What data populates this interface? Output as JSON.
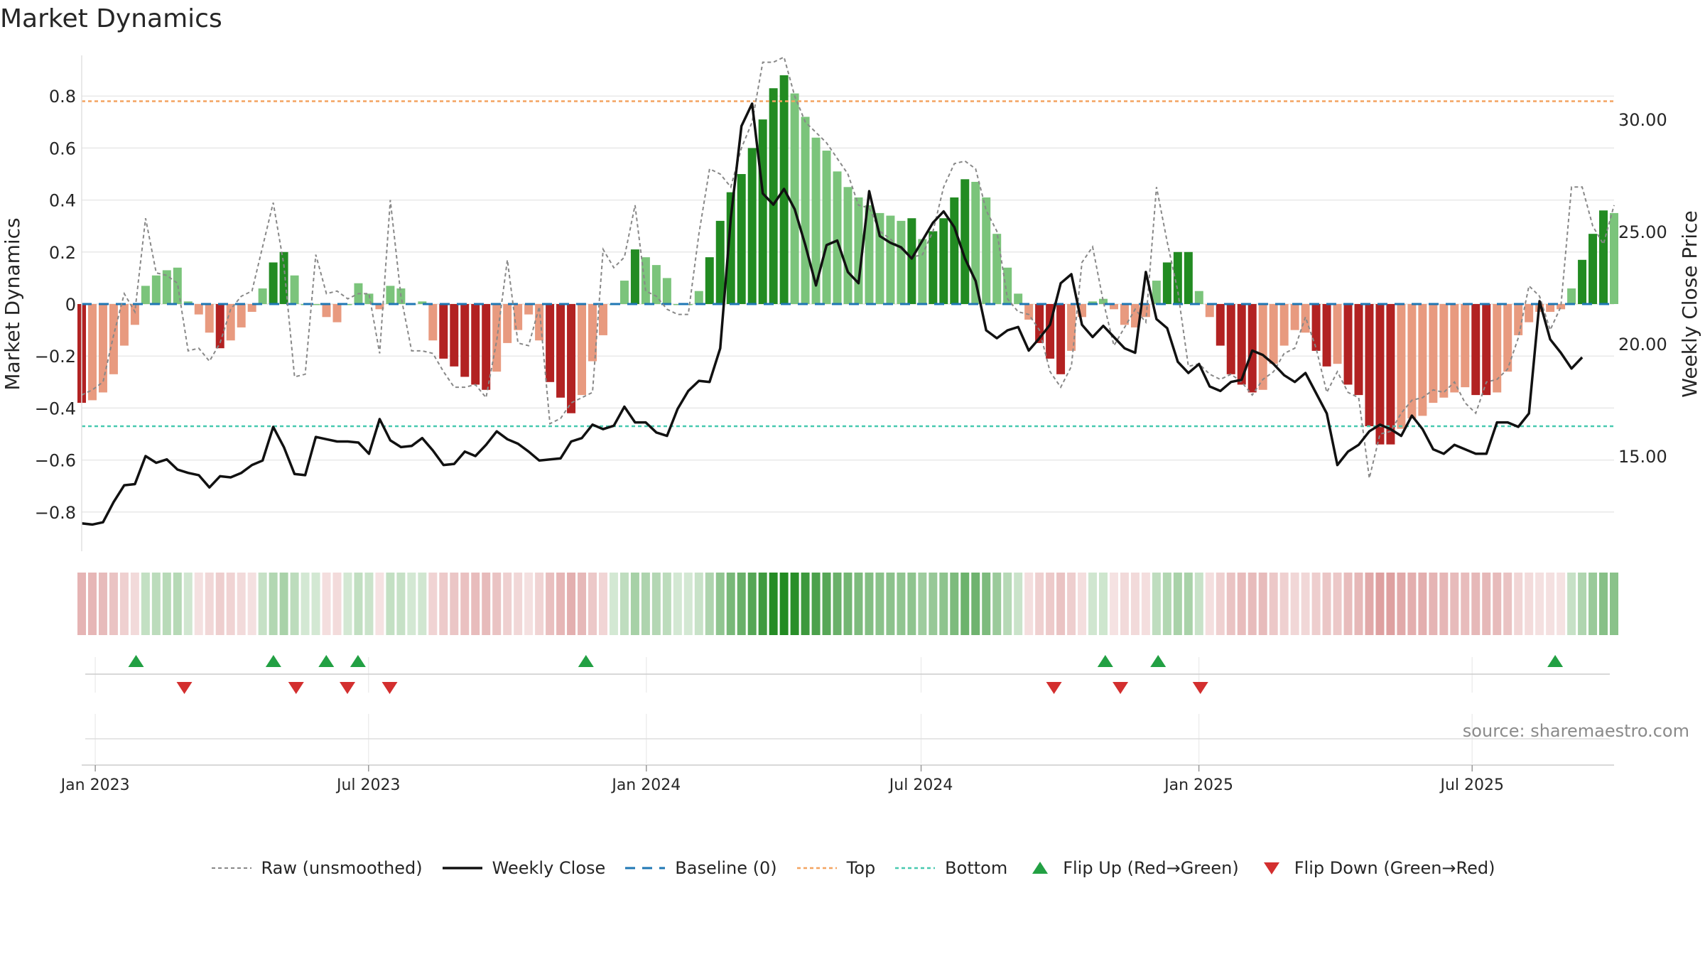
{
  "title": "Market Dynamics",
  "source_text": "source: sharemaestro.com",
  "colors": {
    "green_strong": "#228B22",
    "green_light": "#7BC47B",
    "red_strong": "#B22222",
    "red_light": "#E89A7F",
    "raw_line": "#888888",
    "close_line": "#111111",
    "baseline": "#1f77b4",
    "top": "#F4A460",
    "bottom": "#48C9B0",
    "flip_up": "#22A043",
    "flip_down": "#D32F2F"
  },
  "legend": [
    {
      "key": "raw",
      "label": "Raw (unsmoothed)"
    },
    {
      "key": "close",
      "label": "Weekly Close"
    },
    {
      "key": "baseline",
      "label": "Baseline (0)"
    },
    {
      "key": "top",
      "label": "Top"
    },
    {
      "key": "bottom",
      "label": "Bottom"
    },
    {
      "key": "flip_up",
      "label": "Flip Up (Red→Green)"
    },
    {
      "key": "flip_down",
      "label": "Flip Down (Green→Red)"
    }
  ],
  "chart_data": {
    "type": "bar",
    "ylabel": "Market Dynamics",
    "y2label": "Weekly Close Price",
    "ylim": [
      -0.95,
      0.95
    ],
    "y2lim": [
      10.2,
      33.3
    ],
    "yticks": [
      0.8,
      0.6,
      0.4,
      0.2,
      0,
      -0.2,
      -0.4,
      -0.6,
      -0.8
    ],
    "y2ticks": [
      30.0,
      25.0,
      20.0,
      15.0
    ],
    "y2tick_labels": [
      "30.00",
      "25.00",
      "20.00",
      "15.00"
    ],
    "top_level": 0.78,
    "bottom_level": -0.47,
    "baseline": 0,
    "start_date": "2022-12-23",
    "end_date": "2025-10-03",
    "xticks": [
      {
        "label": "Jan 2023",
        "date": "2023-01-01"
      },
      {
        "label": "Jul 2023",
        "date": "2023-07-01"
      },
      {
        "label": "Jan 2024",
        "date": "2024-01-01"
      },
      {
        "label": "Jul 2024",
        "date": "2024-07-01"
      },
      {
        "label": "Jan 2025",
        "date": "2025-01-01"
      },
      {
        "label": "Jul 2025",
        "date": "2025-07-01"
      }
    ],
    "series": [
      {
        "name": "Market Dynamics (smoothed)",
        "values": [
          -0.38,
          -0.37,
          -0.34,
          -0.27,
          -0.16,
          -0.08,
          0.07,
          0.11,
          0.13,
          0.14,
          0.01,
          -0.04,
          -0.11,
          -0.17,
          -0.14,
          -0.09,
          -0.03,
          0.06,
          0.16,
          0.2,
          0.11,
          0,
          0,
          -0.05,
          -0.07,
          0,
          0.08,
          0.04,
          -0.02,
          0.07,
          0.06,
          0,
          0.01,
          -0.14,
          -0.21,
          -0.24,
          -0.28,
          -0.31,
          -0.33,
          -0.26,
          -0.15,
          -0.1,
          -0.04,
          -0.14,
          -0.3,
          -0.36,
          -0.42,
          -0.35,
          -0.22,
          -0.12,
          0,
          0.09,
          0.21,
          0.18,
          0.15,
          0.1,
          0,
          0,
          0.05,
          0.18,
          0.32,
          0.43,
          0.5,
          0.6,
          0.71,
          0.83,
          0.88,
          0.81,
          0.72,
          0.64,
          0.59,
          0.51,
          0.45,
          0.41,
          0.38,
          0.35,
          0.34,
          0.32,
          0.33,
          0.25,
          0.28,
          0.33,
          0.41,
          0.48,
          0.47,
          0.41,
          0.27,
          0.14,
          0.04,
          -0.06,
          -0.15,
          -0.21,
          -0.27,
          -0.18,
          -0.05,
          0.01,
          0.02,
          -0.02,
          -0.08,
          -0.09,
          -0.05,
          0.09,
          0.16,
          0.2,
          0.2,
          0.05,
          -0.05,
          -0.16,
          -0.27,
          -0.31,
          -0.34,
          -0.33,
          -0.23,
          -0.16,
          -0.1,
          -0.11,
          -0.18,
          -0.24,
          -0.23,
          -0.31,
          -0.35,
          -0.47,
          -0.54,
          -0.54,
          -0.48,
          -0.44,
          -0.43,
          -0.38,
          -0.36,
          -0.34,
          -0.32,
          -0.35,
          -0.35,
          -0.34,
          -0.26,
          -0.12,
          -0.07,
          -0.03,
          -0.03,
          -0.02,
          0.06,
          0.17,
          0.27,
          0.36,
          0.35
        ]
      },
      {
        "name": "Raw (unsmoothed)",
        "values": [
          -0.35,
          -0.33,
          -0.3,
          -0.12,
          0.04,
          -0.03,
          0.33,
          0.12,
          0.11,
          0.08,
          -0.18,
          -0.17,
          -0.22,
          -0.15,
          -0.02,
          0.03,
          0.05,
          0.22,
          0.39,
          0.15,
          -0.28,
          -0.27,
          0.19,
          0.04,
          0.05,
          0.02,
          0.04,
          0.04,
          -0.19,
          0.4,
          0.03,
          -0.18,
          -0.18,
          -0.19,
          -0.26,
          -0.32,
          -0.32,
          -0.31,
          -0.36,
          -0.14,
          0.17,
          -0.15,
          -0.16,
          -0.01,
          -0.46,
          -0.44,
          -0.38,
          -0.36,
          -0.34,
          0.21,
          0.14,
          0.18,
          0.38,
          0.05,
          0.03,
          -0.02,
          -0.04,
          -0.04,
          0.27,
          0.52,
          0.5,
          0.45,
          0.6,
          0.7,
          0.93,
          0.93,
          0.95,
          0.8,
          0.7,
          0.66,
          0.62,
          0.56,
          0.5,
          0.38,
          0.37,
          0.28,
          0.25,
          0.21,
          0.18,
          0.19,
          0.28,
          0.45,
          0.54,
          0.55,
          0.52,
          0.36,
          0.28,
          0.02,
          -0.03,
          -0.04,
          -0.1,
          -0.26,
          -0.32,
          -0.24,
          0.16,
          0.22,
          0.01,
          -0.16,
          -0.09,
          -0.02,
          -0.07,
          0.45,
          0.24,
          0.05,
          -0.24,
          -0.23,
          -0.27,
          -0.29,
          -0.27,
          -0.3,
          -0.35,
          -0.29,
          -0.26,
          -0.19,
          -0.17,
          -0.05,
          -0.17,
          -0.34,
          -0.26,
          -0.34,
          -0.36,
          -0.67,
          -0.5,
          -0.49,
          -0.42,
          -0.37,
          -0.36,
          -0.33,
          -0.34,
          -0.3,
          -0.38,
          -0.42,
          -0.3,
          -0.29,
          -0.25,
          -0.13,
          0.07,
          0.03,
          -0.1,
          -0.01,
          0.45,
          0.45,
          0.3,
          0.23,
          0.38
        ]
      },
      {
        "name": "Weekly Close",
        "values": [
          12.0,
          11.95,
          12.05,
          12.95,
          13.7,
          13.75,
          15.0,
          14.7,
          14.85,
          14.4,
          14.25,
          14.15,
          13.6,
          14.1,
          14.05,
          14.25,
          14.6,
          14.8,
          16.3,
          15.4,
          14.2,
          14.15,
          15.85,
          15.75,
          15.65,
          15.65,
          15.6,
          15.1,
          16.65,
          15.7,
          15.4,
          15.45,
          15.8,
          15.25,
          14.6,
          14.65,
          15.2,
          15.0,
          15.5,
          16.1,
          15.75,
          15.55,
          15.2,
          14.8,
          14.85,
          14.9,
          15.65,
          15.8,
          16.4,
          16.2,
          16.35,
          17.2,
          16.5,
          16.5,
          16.05,
          15.9,
          17.1,
          17.9,
          18.35,
          18.3,
          19.8,
          25.6,
          29.7,
          30.7,
          26.7,
          26.2,
          26.9,
          26.0,
          24.4,
          22.6,
          24.4,
          24.6,
          23.2,
          22.7,
          26.8,
          24.8,
          24.5,
          24.3,
          23.8,
          24.6,
          25.4,
          25.9,
          25.2,
          23.8,
          22.8,
          20.6,
          20.25,
          20.6,
          20.75,
          19.7,
          20.25,
          20.85,
          22.7,
          23.1,
          20.85,
          20.3,
          20.8,
          20.3,
          19.8,
          19.6,
          23.2,
          21.1,
          20.7,
          19.2,
          18.7,
          19.1,
          18.1,
          17.9,
          18.3,
          18.4,
          19.7,
          19.5,
          19.1,
          18.6,
          18.3,
          18.7,
          17.8,
          16.9,
          14.6,
          15.2,
          15.5,
          16.1,
          16.4,
          16.2,
          15.9,
          16.8,
          16.2,
          15.3,
          15.1,
          15.5,
          15.3,
          15.1,
          15.1,
          16.5,
          16.5,
          16.3,
          16.9,
          21.9,
          20.2,
          19.6,
          18.9,
          19.4
        ]
      }
    ],
    "flips_up": [
      "2023-01-28",
      "2023-04-29",
      "2023-06-03",
      "2023-06-24",
      "2023-11-22",
      "2024-10-31",
      "2024-12-05",
      "2025-08-25"
    ],
    "flips_down": [
      "2023-03-01",
      "2023-05-14",
      "2023-06-17",
      "2023-07-15",
      "2024-09-27",
      "2024-11-10",
      "2025-01-02"
    ]
  }
}
